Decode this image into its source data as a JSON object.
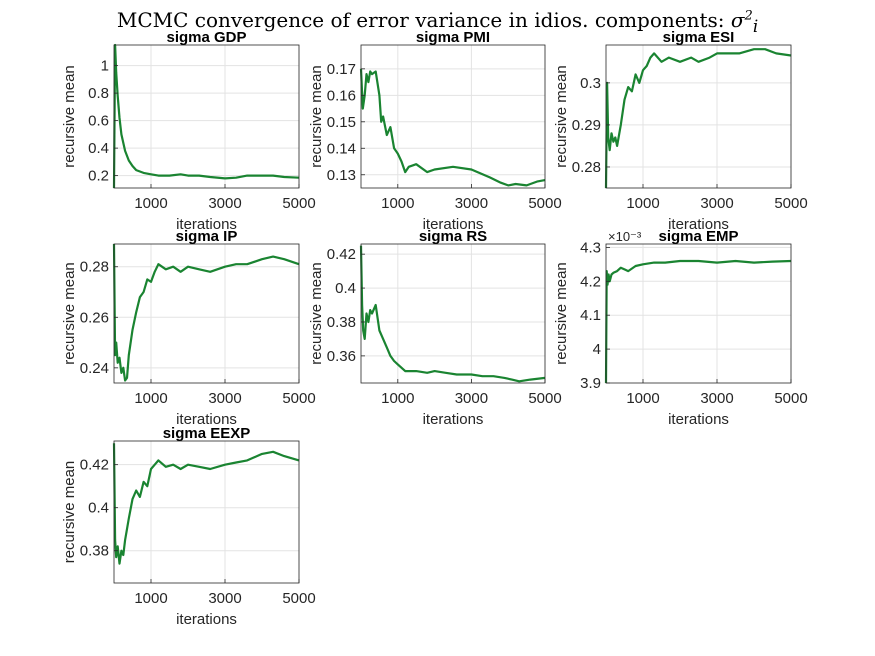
{
  "figure": {
    "title": "MCMC convergence of error variance in idios. components:",
    "title_symbol": "σ",
    "title_symbol_sup": "2",
    "title_symbol_sub": "i"
  },
  "style": {
    "line_color": "#1a8431",
    "grid_color": "#e3e3e3",
    "axis_color": "#262626"
  },
  "chart_data": [
    {
      "type": "line",
      "title": "sigma GDP",
      "xlabel": "iterations",
      "ylabel": "recursive mean",
      "xlim": [
        0,
        5000
      ],
      "ylim": [
        0.11,
        1.15
      ],
      "xticks": [
        1000,
        3000,
        5000
      ],
      "yticks": [
        0.2,
        0.4,
        0.6,
        0.8,
        1
      ],
      "ytick_labels": [
        "0.2",
        "0.4",
        "0.6",
        "0.8",
        "1"
      ],
      "exponent": "",
      "grid": true,
      "x": [
        1,
        30,
        60,
        100,
        150,
        200,
        300,
        400,
        500,
        600,
        800,
        1000,
        1200,
        1500,
        1800,
        2000,
        2300,
        2600,
        3000,
        3300,
        3600,
        4000,
        4300,
        4600,
        5000
      ],
      "y": [
        0.11,
        1.15,
        0.95,
        0.78,
        0.62,
        0.5,
        0.38,
        0.31,
        0.27,
        0.24,
        0.22,
        0.21,
        0.2,
        0.2,
        0.21,
        0.2,
        0.2,
        0.19,
        0.18,
        0.185,
        0.2,
        0.2,
        0.2,
        0.19,
        0.185
      ]
    },
    {
      "type": "line",
      "title": "sigma PMI",
      "xlabel": "iterations",
      "ylabel": "recursive mean",
      "xlim": [
        0,
        5000
      ],
      "ylim": [
        0.125,
        0.179
      ],
      "xticks": [
        1000,
        3000,
        5000
      ],
      "yticks": [
        0.13,
        0.14,
        0.15,
        0.16,
        0.17
      ],
      "ytick_labels": [
        "0.13",
        "0.14",
        "0.15",
        "0.16",
        "0.17"
      ],
      "exponent": "",
      "grid": true,
      "x": [
        1,
        50,
        100,
        150,
        200,
        250,
        300,
        400,
        500,
        550,
        600,
        700,
        800,
        900,
        1000,
        1100,
        1200,
        1300,
        1500,
        1800,
        2000,
        2500,
        3000,
        3500,
        3800,
        4000,
        4200,
        4500,
        4800,
        5000
      ],
      "y": [
        0.17,
        0.155,
        0.16,
        0.168,
        0.165,
        0.169,
        0.168,
        0.169,
        0.16,
        0.15,
        0.152,
        0.145,
        0.148,
        0.14,
        0.138,
        0.135,
        0.131,
        0.133,
        0.134,
        0.131,
        0.132,
        0.133,
        0.132,
        0.129,
        0.127,
        0.126,
        0.1265,
        0.126,
        0.1275,
        0.128
      ]
    },
    {
      "type": "line",
      "title": "sigma ESI",
      "xlabel": "iterations",
      "ylabel": "recursive mean",
      "xlim": [
        0,
        5000
      ],
      "ylim": [
        0.275,
        0.309
      ],
      "xticks": [
        1000,
        3000,
        5000
      ],
      "yticks": [
        0.28,
        0.29,
        0.3
      ],
      "ytick_labels": [
        "0.28",
        "0.29",
        "0.3"
      ],
      "exponent": "",
      "grid": true,
      "x": [
        1,
        30,
        60,
        100,
        150,
        200,
        250,
        300,
        400,
        500,
        600,
        700,
        800,
        900,
        1000,
        1100,
        1200,
        1300,
        1500,
        1700,
        2000,
        2300,
        2500,
        2800,
        3000,
        3300,
        3600,
        4000,
        4300,
        4600,
        5000
      ],
      "y": [
        0.275,
        0.3,
        0.287,
        0.284,
        0.288,
        0.286,
        0.287,
        0.285,
        0.29,
        0.296,
        0.299,
        0.298,
        0.302,
        0.3,
        0.303,
        0.304,
        0.306,
        0.307,
        0.305,
        0.306,
        0.305,
        0.306,
        0.305,
        0.306,
        0.307,
        0.307,
        0.307,
        0.308,
        0.308,
        0.307,
        0.3065
      ]
    },
    {
      "type": "line",
      "title": "sigma IP",
      "xlabel": "iterations",
      "ylabel": "recursive mean",
      "xlim": [
        0,
        5000
      ],
      "ylim": [
        0.234,
        0.289
      ],
      "xticks": [
        1000,
        3000,
        5000
      ],
      "yticks": [
        0.24,
        0.26,
        0.28
      ],
      "ytick_labels": [
        "0.24",
        "0.26",
        "0.28"
      ],
      "exponent": "",
      "grid": true,
      "x": [
        1,
        30,
        60,
        100,
        150,
        200,
        250,
        300,
        350,
        400,
        500,
        600,
        700,
        800,
        900,
        1000,
        1100,
        1200,
        1400,
        1600,
        1800,
        2000,
        2300,
        2600,
        3000,
        3300,
        3600,
        4000,
        4300,
        4600,
        5000
      ],
      "y": [
        0.289,
        0.245,
        0.25,
        0.242,
        0.244,
        0.238,
        0.24,
        0.235,
        0.236,
        0.245,
        0.255,
        0.262,
        0.268,
        0.27,
        0.275,
        0.274,
        0.278,
        0.281,
        0.279,
        0.28,
        0.278,
        0.28,
        0.279,
        0.278,
        0.28,
        0.281,
        0.281,
        0.283,
        0.284,
        0.283,
        0.281
      ]
    },
    {
      "type": "line",
      "title": "sigma RS",
      "xlabel": "iterations",
      "ylabel": "recursive mean",
      "xlim": [
        0,
        5000
      ],
      "ylim": [
        0.344,
        0.426
      ],
      "xticks": [
        1000,
        3000,
        5000
      ],
      "yticks": [
        0.36,
        0.38,
        0.4,
        0.42
      ],
      "ytick_labels": [
        "0.36",
        "0.38",
        "0.4",
        "0.42"
      ],
      "exponent": "",
      "grid": true,
      "x": [
        1,
        30,
        60,
        100,
        150,
        200,
        250,
        300,
        400,
        500,
        600,
        700,
        800,
        900,
        1000,
        1200,
        1500,
        1800,
        2000,
        2300,
        2600,
        3000,
        3300,
        3600,
        3900,
        4100,
        4300,
        4600,
        5000
      ],
      "y": [
        0.425,
        0.39,
        0.375,
        0.37,
        0.385,
        0.38,
        0.387,
        0.385,
        0.39,
        0.375,
        0.37,
        0.365,
        0.36,
        0.357,
        0.355,
        0.351,
        0.351,
        0.35,
        0.351,
        0.35,
        0.349,
        0.349,
        0.348,
        0.348,
        0.347,
        0.346,
        0.345,
        0.346,
        0.347
      ]
    },
    {
      "type": "line",
      "title": "sigma EMP",
      "xlabel": "iterations",
      "ylabel": "recursive mean",
      "xlim": [
        0,
        5000
      ],
      "ylim": [
        3.9,
        4.31
      ],
      "xticks": [
        1000,
        3000,
        5000
      ],
      "yticks": [
        3.9,
        4,
        4.1,
        4.2,
        4.3
      ],
      "ytick_labels": [
        "3.9",
        "4",
        "4.1",
        "4.2",
        "4.3"
      ],
      "exponent": "×10⁻³",
      "grid": true,
      "x": [
        1,
        20,
        40,
        70,
        100,
        150,
        200,
        300,
        400,
        500,
        600,
        800,
        1000,
        1300,
        1600,
        2000,
        2500,
        3000,
        3500,
        4000,
        4500,
        5000
      ],
      "y": [
        3.9,
        4.23,
        4.19,
        4.22,
        4.2,
        4.22,
        4.225,
        4.23,
        4.24,
        4.235,
        4.23,
        4.245,
        4.25,
        4.255,
        4.255,
        4.26,
        4.26,
        4.255,
        4.26,
        4.255,
        4.258,
        4.26
      ]
    },
    {
      "type": "line",
      "title": "sigma EEXP",
      "xlabel": "iterations",
      "ylabel": "recursive mean",
      "xlim": [
        0,
        5000
      ],
      "ylim": [
        0.365,
        0.431
      ],
      "xticks": [
        1000,
        3000,
        5000
      ],
      "yticks": [
        0.38,
        0.4,
        0.42
      ],
      "ytick_labels": [
        "0.38",
        "0.4",
        "0.42"
      ],
      "exponent": "",
      "grid": true,
      "x": [
        1,
        30,
        60,
        100,
        150,
        200,
        250,
        300,
        400,
        500,
        600,
        700,
        800,
        900,
        1000,
        1100,
        1200,
        1400,
        1600,
        1800,
        2000,
        2300,
        2600,
        3000,
        3300,
        3600,
        4000,
        4300,
        4600,
        5000
      ],
      "y": [
        0.43,
        0.385,
        0.377,
        0.382,
        0.374,
        0.38,
        0.378,
        0.385,
        0.395,
        0.404,
        0.408,
        0.405,
        0.412,
        0.41,
        0.418,
        0.42,
        0.422,
        0.419,
        0.42,
        0.418,
        0.42,
        0.419,
        0.418,
        0.42,
        0.421,
        0.422,
        0.425,
        0.426,
        0.424,
        0.422
      ]
    }
  ]
}
